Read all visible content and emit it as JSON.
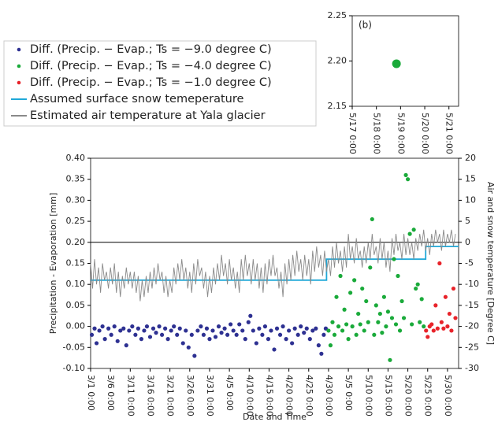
{
  "chart_data": [
    {
      "type": "scatter",
      "x_label": "Date and Time",
      "y_label": "Precipitation - Evaporation [mm]",
      "y2_label": "Air and snow temperature [Degree C]",
      "xlim": [
        0,
        92.8
      ],
      "xticks": [
        {
          "value": 0,
          "label": "3/1 0:00"
        },
        {
          "value": 5,
          "label": "3/6 0:00"
        },
        {
          "value": 10,
          "label": "3/11 0:00"
        },
        {
          "value": 15,
          "label": "3/16 0:00"
        },
        {
          "value": 20,
          "label": "3/21 0:00"
        },
        {
          "value": 25,
          "label": "3/26 0:00"
        },
        {
          "value": 30,
          "label": "3/31 0:00"
        },
        {
          "value": 35,
          "label": "4/5 0:00"
        },
        {
          "value": 40,
          "label": "4/10 0:00"
        },
        {
          "value": 45,
          "label": "4/15 0:00"
        },
        {
          "value": 50,
          "label": "4/20 0:00"
        },
        {
          "value": 55,
          "label": "4/25 0:00"
        },
        {
          "value": 60,
          "label": "4/30 0:00"
        },
        {
          "value": 65,
          "label": "5/5 0:00"
        },
        {
          "value": 70,
          "label": "5/10 0:00"
        },
        {
          "value": 75,
          "label": "5/15 0:00"
        },
        {
          "value": 80,
          "label": "5/20 0:00"
        },
        {
          "value": 85,
          "label": "5/25 0:00"
        },
        {
          "value": 90,
          "label": "5/30 0:00"
        }
      ],
      "ylim": [
        -0.1,
        0.4
      ],
      "yticks": [
        {
          "value": -0.1,
          "label": "-0.10"
        },
        {
          "value": -0.05,
          "label": "-0.05"
        },
        {
          "value": 0,
          "label": "0.00"
        },
        {
          "value": 0.05,
          "label": "0.05"
        },
        {
          "value": 0.1,
          "label": "0.10"
        },
        {
          "value": 0.15,
          "label": "0.15"
        },
        {
          "value": 0.2,
          "label": "0.20"
        },
        {
          "value": 0.25,
          "label": "0.25"
        },
        {
          "value": 0.3,
          "label": "0.30"
        },
        {
          "value": 0.35,
          "label": "0.35"
        },
        {
          "value": 0.4,
          "label": "0.40"
        }
      ],
      "y2lim": [
        -30,
        20
      ],
      "y2ticks": [
        -30,
        -25,
        -20,
        -15,
        -10,
        -5,
        0,
        5,
        10,
        15,
        20
      ],
      "series": [
        {
          "name": "Diff. (Precip. − Evap.; Ts = −9.0 degree C)",
          "color": "#2e3192",
          "mode": "markers",
          "x": [
            0.3,
            1,
            1.5,
            2.2,
            3,
            3.6,
            4.5,
            5.2,
            6,
            6.8,
            7.5,
            8.3,
            9,
            9.7,
            10.5,
            11.3,
            12,
            12.8,
            13.5,
            14.2,
            15,
            15.8,
            16.5,
            17.3,
            18,
            18.8,
            19.5,
            20.3,
            21,
            21.8,
            22.5,
            23.3,
            24,
            24.7,
            25.5,
            26.2,
            27,
            27.8,
            28.5,
            29.3,
            30,
            30.8,
            31.5,
            32.3,
            33,
            33.8,
            34.5,
            35.3,
            36,
            36.8,
            37.5,
            38.3,
            39,
            39.8,
            40.3,
            41,
            41.8,
            42.5,
            43.3,
            44,
            44.8,
            45.5,
            46.3,
            47,
            47.8,
            48.5,
            49.3,
            50,
            50.8,
            51.5,
            52.3,
            53,
            53.8,
            54.5,
            55.3,
            56,
            56.8,
            57.5,
            58.2,
            58.8,
            59.3
          ],
          "values": [
            -0.02,
            -0.005,
            -0.04,
            -0.01,
            0,
            -0.03,
            -0.005,
            -0.02,
            0,
            -0.035,
            -0.01,
            -0.005,
            -0.045,
            -0.01,
            0,
            -0.02,
            -0.005,
            -0.03,
            -0.01,
            0,
            -0.025,
            -0.005,
            -0.015,
            0,
            -0.02,
            -0.005,
            -0.03,
            -0.01,
            0,
            -0.02,
            -0.005,
            -0.04,
            -0.01,
            -0.05,
            -0.02,
            -0.07,
            -0.01,
            0,
            -0.02,
            -0.005,
            -0.03,
            -0.01,
            -0.025,
            0,
            -0.015,
            -0.005,
            -0.02,
            0.005,
            -0.01,
            -0.02,
            0.005,
            -0.01,
            -0.03,
            0.01,
            0.025,
            -0.01,
            -0.04,
            -0.005,
            -0.02,
            0,
            -0.03,
            -0.01,
            -0.055,
            -0.005,
            -0.02,
            0,
            -0.03,
            -0.01,
            -0.04,
            -0.005,
            -0.02,
            0,
            -0.015,
            -0.005,
            -0.03,
            -0.01,
            -0.005,
            -0.045,
            -0.065,
            -0.02,
            -0.005
          ]
        },
        {
          "name": "Diff. (Precip. − Evap.; Ts = −4.0 degree C)",
          "color": "#1aaa3a",
          "mode": "markers",
          "x": [
            60,
            60.5,
            61,
            61.5,
            62,
            62.5,
            63,
            63.5,
            64,
            64.5,
            65,
            65.5,
            66,
            66.5,
            67,
            67.5,
            68,
            68.5,
            69,
            69.5,
            70,
            70.5,
            71,
            71.5,
            72,
            72.5,
            73,
            73.5,
            74,
            74.5,
            75,
            75.5,
            76,
            76.5,
            77,
            77.5,
            78,
            78.5,
            79,
            79.5,
            80,
            80.5,
            81,
            81.5,
            82,
            82.5,
            83,
            83.5,
            84
          ],
          "values": [
            -0.01,
            -0.045,
            0.01,
            -0.02,
            0.07,
            0,
            0.12,
            -0.01,
            0.04,
            0.005,
            -0.03,
            0.08,
            0,
            0.11,
            -0.02,
            0.03,
            0.005,
            0.09,
            -0.01,
            0.06,
            0.01,
            0.14,
            0.255,
            -0.02,
            0.05,
            0.01,
            0.03,
            -0.015,
            0.07,
            0,
            0.035,
            -0.08,
            0.02,
            0.16,
            0.005,
            0.12,
            -0.01,
            0.06,
            0.02,
            0.36,
            0.35,
            0.22,
            0.005,
            0.23,
            0.09,
            0.1,
            0.01,
            0.065,
            0
          ]
        },
        {
          "name": "Diff. (Precip. − Evap.; Ts = −1.0 degree C)",
          "color": "#e8232a",
          "mode": "markers",
          "x": [
            84.6,
            85,
            85.5,
            86,
            86.5,
            87,
            87.5,
            88,
            88.5,
            89,
            89.5,
            90,
            90.5,
            91,
            91.5,
            92
          ],
          "values": [
            -0.01,
            -0.025,
            0,
            0.005,
            -0.01,
            0.05,
            -0.005,
            0.15,
            0.01,
            -0.005,
            0.07,
            0,
            0.03,
            -0.01,
            0.09,
            0.02
          ]
        },
        {
          "name": "Assumed surface snow temeperature",
          "color": "#1fa8d8",
          "mode": "line",
          "axis": "y2",
          "x": [
            0,
            59.5,
            59.5,
            84.5,
            84.5,
            92.8
          ],
          "values": [
            -9,
            -9,
            -4,
            -4,
            -1,
            -1
          ]
        },
        {
          "name": "Estimated air temperature at Yala glacier",
          "color": "#8a8a8a",
          "mode": "line",
          "axis": "y2",
          "x": [
            0,
            0.5,
            1,
            1.5,
            2,
            2.5,
            3,
            3.5,
            4,
            4.5,
            5,
            5.5,
            6,
            6.5,
            7,
            7.5,
            8,
            8.5,
            9,
            9.5,
            10,
            10.5,
            11,
            11.5,
            12,
            12.5,
            13,
            13.5,
            14,
            14.5,
            15,
            15.5,
            16,
            16.5,
            17,
            17.5,
            18,
            18.5,
            19,
            19.5,
            20,
            20.5,
            21,
            21.5,
            22,
            22.5,
            23,
            23.5,
            24,
            24.5,
            25,
            25.5,
            26,
            26.5,
            27,
            27.5,
            28,
            28.5,
            29,
            29.5,
            30,
            30.5,
            31,
            31.5,
            32,
            32.5,
            33,
            33.5,
            34,
            34.5,
            35,
            35.5,
            36,
            36.5,
            37,
            37.5,
            38,
            38.5,
            39,
            39.5,
            40,
            40.5,
            41,
            41.5,
            42,
            42.5,
            43,
            43.5,
            44,
            44.5,
            45,
            45.5,
            46,
            46.5,
            47,
            47.5,
            48,
            48.5,
            49,
            49.5,
            50,
            50.5,
            51,
            51.5,
            52,
            52.5,
            53,
            53.5,
            54,
            54.5,
            55,
            55.5,
            56,
            56.5,
            57,
            57.5,
            58,
            58.5,
            59,
            59.5,
            60,
            60.5,
            61,
            61.5,
            62,
            62.5,
            63,
            63.5,
            64,
            64.5,
            65,
            65.5,
            66,
            66.5,
            67,
            67.5,
            68,
            68.5,
            69,
            69.5,
            70,
            70.5,
            71,
            71.5,
            72,
            72.5,
            73,
            73.5,
            74,
            74.5,
            75,
            75.5,
            76,
            76.5,
            77,
            77.5,
            78,
            78.5,
            79,
            79.5,
            80,
            80.5,
            81,
            81.5,
            82,
            82.5,
            83,
            83.5,
            84,
            84.5,
            85,
            85.5,
            86,
            86.5,
            87,
            87.5,
            88,
            88.5,
            89,
            89.5,
            90,
            90.5,
            91,
            91.5,
            92
          ],
          "values": [
            -5,
            -11,
            -4,
            -10,
            -6,
            -12,
            -5,
            -9,
            -7,
            -11,
            -6,
            -10,
            -5,
            -12,
            -7,
            -13,
            -8,
            -11,
            -6,
            -10,
            -7,
            -11,
            -7,
            -12,
            -8,
            -14,
            -9,
            -13,
            -8,
            -12,
            -7,
            -11,
            -6,
            -10,
            -5,
            -9,
            -7,
            -12,
            -8,
            -13,
            -9,
            -12,
            -6,
            -10,
            -5,
            -9,
            -4,
            -9,
            -6,
            -11,
            -7,
            -12,
            -5,
            -10,
            -4,
            -8,
            -6,
            -11,
            -7,
            -13,
            -8,
            -12,
            -6,
            -10,
            -5,
            -9,
            -3,
            -8,
            -5,
            -10,
            -4,
            -9,
            -6,
            -11,
            -7,
            -12,
            -4,
            -9,
            -3,
            -8,
            -5,
            -10,
            -4,
            -9,
            -5,
            -11,
            -6,
            -12,
            -5,
            -10,
            -4,
            -8,
            -3,
            -8,
            -6,
            -11,
            -7,
            -13,
            -5,
            -10,
            -4,
            -9,
            -3,
            -8,
            -2,
            -7,
            -4,
            -9,
            -3,
            -8,
            -4,
            -10,
            -2,
            -7,
            -1,
            -6,
            -3,
            -8,
            -2,
            -7,
            -4,
            -8,
            -1,
            -6,
            0,
            -5,
            -2,
            -7,
            -1,
            -6,
            2,
            -4,
            -1,
            -5,
            1,
            -4,
            -2,
            -6,
            -1,
            -5,
            0,
            -4,
            2,
            -3,
            -1,
            -5,
            1,
            -4,
            0,
            -6,
            -2,
            -7,
            1,
            -3,
            2,
            -2,
            0,
            -4,
            2,
            -3,
            1,
            -3,
            0,
            -4,
            1,
            -2,
            2,
            -1,
            3,
            -2,
            1,
            -3,
            2,
            -1,
            3,
            0,
            2,
            -2,
            3,
            -1,
            2,
            0,
            3,
            -1,
            2
          ]
        }
      ]
    },
    {
      "type": "scatter",
      "annotation": "(b)",
      "xlim": [
        0,
        4.4
      ],
      "xticks": [
        {
          "value": 0,
          "label": "5/17 0:00"
        },
        {
          "value": 1,
          "label": "5/18 0:00"
        },
        {
          "value": 2,
          "label": "5/19 0:00"
        },
        {
          "value": 3,
          "label": "5/20 0:00"
        },
        {
          "value": 4,
          "label": "5/21 0:00"
        }
      ],
      "ylim": [
        2.15,
        2.25
      ],
      "yticks": [
        2.15,
        {
          "value": 2.2,
          "label": "2.20"
        },
        2.25
      ],
      "series": [
        {
          "color": "#1aaa3a",
          "mode": "markers",
          "x": [
            1.83
          ],
          "values": [
            2.197
          ]
        }
      ]
    }
  ]
}
